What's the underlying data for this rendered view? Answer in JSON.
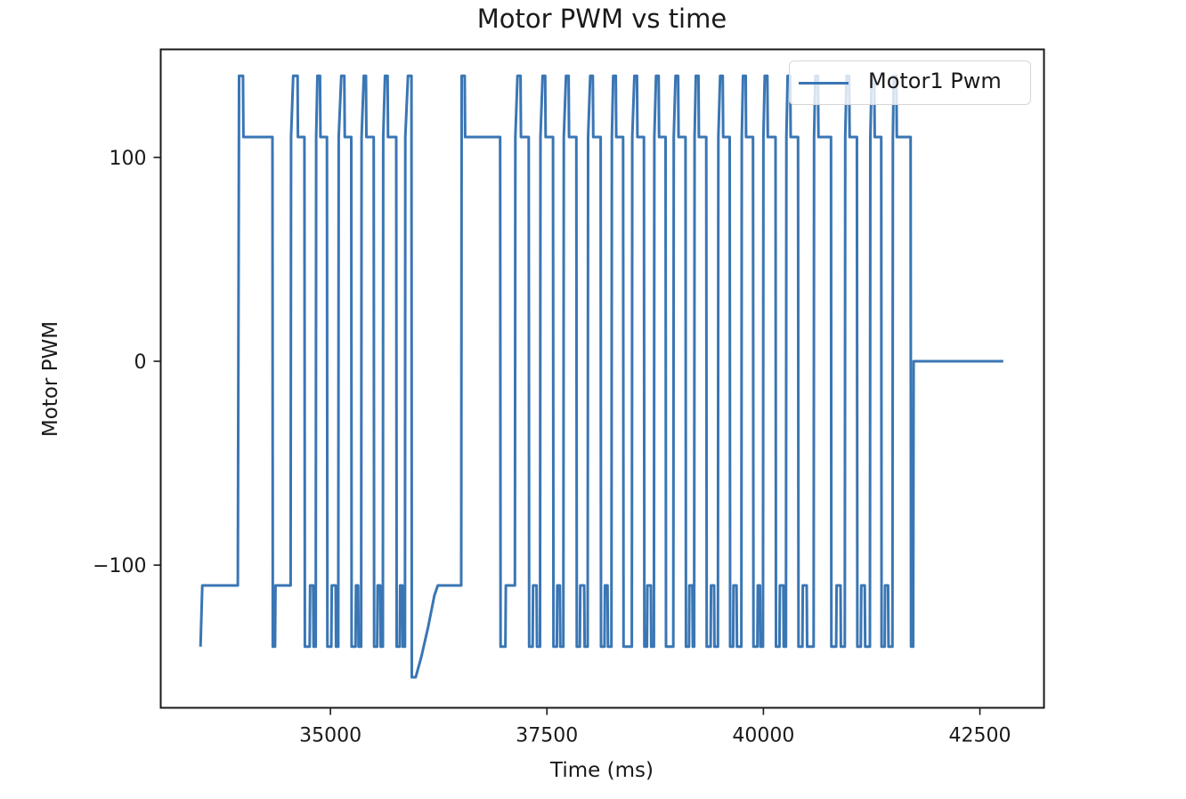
{
  "chart_data": {
    "type": "line",
    "title": "Motor PWM vs time",
    "xlabel": "Time (ms)",
    "ylabel": "Motor PWM",
    "xlim": [
      33040,
      43240
    ],
    "ylim": [
      -170,
      153
    ],
    "xticks": [
      35000,
      37500,
      40000,
      42500
    ],
    "xtick_labels": [
      "35000",
      "37500",
      "40000",
      "42500"
    ],
    "yticks": [
      100,
      0,
      -100
    ],
    "ytick_labels": [
      "100",
      "0",
      "−100"
    ],
    "grid": false,
    "legend_position": "upper right",
    "series": [
      {
        "name": "Motor1 Pwm",
        "color": "#3a76b4",
        "points": [
          [
            33500,
            -140
          ],
          [
            33520,
            -110
          ],
          [
            33930,
            -110
          ],
          [
            33945,
            140
          ],
          [
            33990,
            140
          ],
          [
            33995,
            110
          ],
          [
            34330,
            110
          ],
          [
            34335,
            -140
          ],
          [
            34360,
            -140
          ],
          [
            34365,
            -110
          ],
          [
            34540,
            -110
          ],
          [
            34545,
            110
          ],
          [
            34570,
            140
          ],
          [
            34620,
            140
          ],
          [
            34625,
            110
          ],
          [
            34700,
            110
          ],
          [
            34705,
            -140
          ],
          [
            34760,
            -140
          ],
          [
            34765,
            -110
          ],
          [
            34800,
            -110
          ],
          [
            34805,
            -140
          ],
          [
            34830,
            -140
          ],
          [
            34835,
            110
          ],
          [
            34850,
            140
          ],
          [
            34880,
            140
          ],
          [
            34885,
            110
          ],
          [
            34960,
            110
          ],
          [
            34965,
            -140
          ],
          [
            35010,
            -140
          ],
          [
            35015,
            -110
          ],
          [
            35060,
            -110
          ],
          [
            35065,
            -140
          ],
          [
            35090,
            -140
          ],
          [
            35095,
            110
          ],
          [
            35125,
            140
          ],
          [
            35160,
            140
          ],
          [
            35165,
            110
          ],
          [
            35240,
            110
          ],
          [
            35245,
            -140
          ],
          [
            35290,
            -140
          ],
          [
            35295,
            -110
          ],
          [
            35320,
            -110
          ],
          [
            35325,
            -140
          ],
          [
            35355,
            -140
          ],
          [
            35360,
            110
          ],
          [
            35385,
            140
          ],
          [
            35410,
            140
          ],
          [
            35415,
            110
          ],
          [
            35500,
            110
          ],
          [
            35505,
            -140
          ],
          [
            35540,
            -140
          ],
          [
            35545,
            -110
          ],
          [
            35575,
            -110
          ],
          [
            35580,
            -140
          ],
          [
            35605,
            -140
          ],
          [
            35610,
            110
          ],
          [
            35630,
            140
          ],
          [
            35660,
            140
          ],
          [
            35665,
            110
          ],
          [
            35760,
            110
          ],
          [
            35765,
            -140
          ],
          [
            35800,
            -140
          ],
          [
            35805,
            -110
          ],
          [
            35830,
            -110
          ],
          [
            35835,
            -140
          ],
          [
            35860,
            -140
          ],
          [
            35865,
            110
          ],
          [
            35895,
            140
          ],
          [
            35935,
            140
          ],
          [
            35940,
            -155
          ],
          [
            35985,
            -155
          ],
          [
            36050,
            -145
          ],
          [
            36130,
            -130
          ],
          [
            36200,
            -115
          ],
          [
            36240,
            -110
          ],
          [
            36510,
            -110
          ],
          [
            36515,
            140
          ],
          [
            36550,
            140
          ],
          [
            36555,
            110
          ],
          [
            36960,
            110
          ],
          [
            36965,
            -140
          ],
          [
            37020,
            -140
          ],
          [
            37025,
            -110
          ],
          [
            37130,
            -110
          ],
          [
            37135,
            110
          ],
          [
            37160,
            140
          ],
          [
            37195,
            140
          ],
          [
            37200,
            110
          ],
          [
            37290,
            110
          ],
          [
            37295,
            -140
          ],
          [
            37335,
            -140
          ],
          [
            37340,
            -110
          ],
          [
            37380,
            -110
          ],
          [
            37385,
            -140
          ],
          [
            37420,
            -140
          ],
          [
            37425,
            110
          ],
          [
            37450,
            140
          ],
          [
            37480,
            140
          ],
          [
            37485,
            110
          ],
          [
            37570,
            110
          ],
          [
            37575,
            -140
          ],
          [
            37615,
            -140
          ],
          [
            37620,
            -110
          ],
          [
            37650,
            -110
          ],
          [
            37655,
            -140
          ],
          [
            37690,
            -140
          ],
          [
            37695,
            110
          ],
          [
            37720,
            140
          ],
          [
            37750,
            140
          ],
          [
            37755,
            110
          ],
          [
            37840,
            110
          ],
          [
            37845,
            -140
          ],
          [
            37880,
            -140
          ],
          [
            37885,
            -110
          ],
          [
            37930,
            -110
          ],
          [
            37935,
            -140
          ],
          [
            37970,
            -140
          ],
          [
            37975,
            110
          ],
          [
            38000,
            140
          ],
          [
            38030,
            140
          ],
          [
            38035,
            110
          ],
          [
            38120,
            110
          ],
          [
            38125,
            -140
          ],
          [
            38165,
            -140
          ],
          [
            38170,
            -110
          ],
          [
            38200,
            -110
          ],
          [
            38205,
            -140
          ],
          [
            38245,
            -140
          ],
          [
            38250,
            110
          ],
          [
            38265,
            140
          ],
          [
            38295,
            140
          ],
          [
            38300,
            110
          ],
          [
            38380,
            110
          ],
          [
            38385,
            -140
          ],
          [
            38480,
            -140
          ],
          [
            38485,
            110
          ],
          [
            38510,
            140
          ],
          [
            38540,
            140
          ],
          [
            38545,
            110
          ],
          [
            38620,
            110
          ],
          [
            38625,
            -140
          ],
          [
            38655,
            -140
          ],
          [
            38660,
            -110
          ],
          [
            38700,
            -110
          ],
          [
            38705,
            -140
          ],
          [
            38735,
            -140
          ],
          [
            38740,
            110
          ],
          [
            38760,
            140
          ],
          [
            38790,
            140
          ],
          [
            38795,
            110
          ],
          [
            38870,
            110
          ],
          [
            38875,
            -140
          ],
          [
            38960,
            -140
          ],
          [
            38965,
            110
          ],
          [
            38985,
            140
          ],
          [
            39015,
            140
          ],
          [
            39020,
            110
          ],
          [
            39100,
            110
          ],
          [
            39105,
            -140
          ],
          [
            39140,
            -140
          ],
          [
            39145,
            -110
          ],
          [
            39180,
            -110
          ],
          [
            39185,
            -140
          ],
          [
            39200,
            -140
          ],
          [
            39205,
            110
          ],
          [
            39220,
            140
          ],
          [
            39250,
            140
          ],
          [
            39255,
            110
          ],
          [
            39340,
            110
          ],
          [
            39345,
            -140
          ],
          [
            39390,
            -140
          ],
          [
            39395,
            -110
          ],
          [
            39430,
            -110
          ],
          [
            39435,
            -140
          ],
          [
            39475,
            -140
          ],
          [
            39480,
            110
          ],
          [
            39500,
            140
          ],
          [
            39530,
            140
          ],
          [
            39535,
            110
          ],
          [
            39610,
            110
          ],
          [
            39615,
            -140
          ],
          [
            39650,
            -140
          ],
          [
            39655,
            -110
          ],
          [
            39690,
            -110
          ],
          [
            39695,
            -140
          ],
          [
            39745,
            -140
          ],
          [
            39750,
            110
          ],
          [
            39765,
            140
          ],
          [
            39795,
            140
          ],
          [
            39800,
            110
          ],
          [
            39880,
            110
          ],
          [
            39885,
            -140
          ],
          [
            39930,
            -140
          ],
          [
            39935,
            -110
          ],
          [
            39960,
            -110
          ],
          [
            39965,
            -140
          ],
          [
            39995,
            -140
          ],
          [
            40000,
            110
          ],
          [
            40015,
            140
          ],
          [
            40045,
            140
          ],
          [
            40050,
            110
          ],
          [
            40140,
            110
          ],
          [
            40145,
            -140
          ],
          [
            40185,
            -140
          ],
          [
            40190,
            -110
          ],
          [
            40230,
            -110
          ],
          [
            40235,
            -140
          ],
          [
            40260,
            -140
          ],
          [
            40265,
            110
          ],
          [
            40280,
            140
          ],
          [
            40310,
            140
          ],
          [
            40315,
            110
          ],
          [
            40400,
            110
          ],
          [
            40405,
            -140
          ],
          [
            40450,
            -140
          ],
          [
            40455,
            -110
          ],
          [
            40500,
            -110
          ],
          [
            40505,
            -140
          ],
          [
            40580,
            -140
          ],
          [
            40585,
            110
          ],
          [
            40600,
            140
          ],
          [
            40630,
            140
          ],
          [
            40635,
            110
          ],
          [
            40780,
            110
          ],
          [
            40785,
            -140
          ],
          [
            40840,
            -140
          ],
          [
            40845,
            -110
          ],
          [
            40890,
            -110
          ],
          [
            40895,
            -140
          ],
          [
            40940,
            -140
          ],
          [
            40945,
            110
          ],
          [
            40960,
            140
          ],
          [
            40990,
            140
          ],
          [
            40995,
            110
          ],
          [
            41080,
            110
          ],
          [
            41085,
            -140
          ],
          [
            41125,
            -140
          ],
          [
            41130,
            -110
          ],
          [
            41170,
            -110
          ],
          [
            41175,
            -140
          ],
          [
            41230,
            -140
          ],
          [
            41235,
            110
          ],
          [
            41250,
            140
          ],
          [
            41280,
            140
          ],
          [
            41285,
            110
          ],
          [
            41360,
            110
          ],
          [
            41365,
            -140
          ],
          [
            41400,
            -140
          ],
          [
            41405,
            -110
          ],
          [
            41440,
            -110
          ],
          [
            41445,
            -140
          ],
          [
            41490,
            -140
          ],
          [
            41495,
            110
          ],
          [
            41505,
            140
          ],
          [
            41535,
            140
          ],
          [
            41540,
            110
          ],
          [
            41700,
            110
          ],
          [
            41705,
            -140
          ],
          [
            41730,
            -140
          ],
          [
            41735,
            0
          ],
          [
            42770,
            0
          ]
        ]
      }
    ]
  },
  "legend": {
    "items": [
      {
        "label": "Motor1 Pwm",
        "color": "#3a76b4"
      }
    ]
  }
}
